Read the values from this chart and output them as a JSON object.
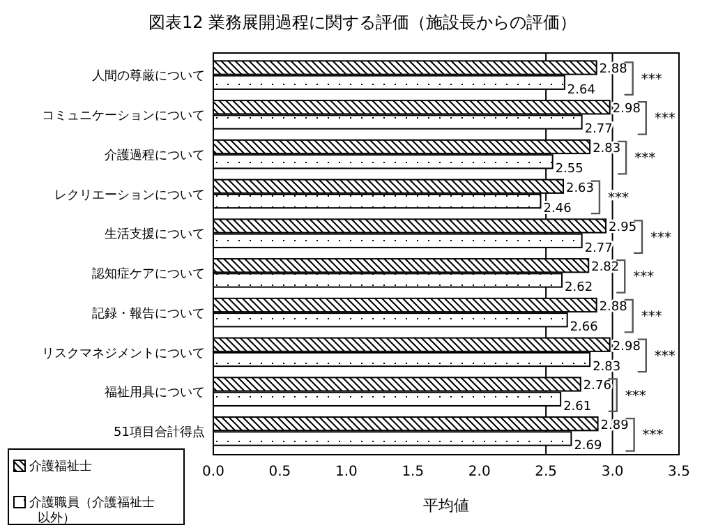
{
  "chart_data": {
    "type": "bar",
    "orientation": "horizontal",
    "title": "図表12 業務展開過程に関する評価（施設長からの評価）",
    "xlabel": "平均値",
    "categories": [
      "人間の尊厳について",
      "コミュニケーションについて",
      "介護過程について",
      "レクリエーションについて",
      "生活支援について",
      "認知症ケアについて",
      "記録・報告について",
      "リスクマネジメントについて",
      "福祉用具について",
      "51項目合計得点"
    ],
    "series": [
      {
        "name": "介護福祉士",
        "color": "#000000",
        "values": [
          2.88,
          2.98,
          2.83,
          2.63,
          2.95,
          2.82,
          2.88,
          2.98,
          2.76,
          2.89
        ]
      },
      {
        "name": "介護職員（介護福祉士以外）",
        "color": "#000000",
        "values": [
          2.64,
          2.77,
          2.55,
          2.46,
          2.77,
          2.62,
          2.66,
          2.83,
          2.61,
          2.69
        ]
      }
    ],
    "xlim": [
      0,
      3.5
    ],
    "xticks": [
      {
        "value": 0,
        "label": "0.0"
      },
      {
        "value": 0.5,
        "label": "0.5"
      },
      {
        "value": 1,
        "label": "1.0"
      },
      {
        "value": 1.5,
        "label": "1.5"
      },
      {
        "value": 2,
        "label": "2.0"
      },
      {
        "value": 2.5,
        "label": "2.5"
      },
      {
        "value": 3,
        "label": "3.0"
      },
      {
        "value": 3.5,
        "label": "3.5"
      }
    ],
    "ref_lines": [
      {
        "axis": "x",
        "value": 2.5,
        "color": "#000000"
      },
      {
        "axis": "x",
        "value": 3,
        "color": "#000000"
      }
    ],
    "data_labels": true,
    "legend": "bottom left",
    "grid": false,
    "annotations": [
      "***",
      "***",
      "***",
      "***",
      "***",
      "***",
      "***",
      "***",
      "***",
      "***"
    ]
  }
}
